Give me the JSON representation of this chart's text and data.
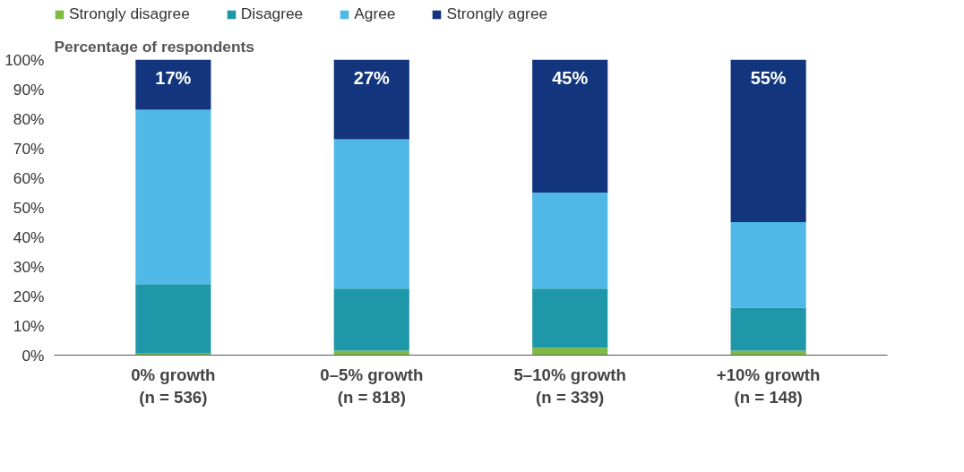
{
  "chart_data": {
    "type": "bar",
    "stacked": true,
    "ylabel": "Percentage of respondents",
    "categories": [
      "0% growth\n(n = 536)",
      "0–5% growth\n(n = 818)",
      "5–10% growth\n(n = 339)",
      "+10% growth\n(n = 148)"
    ],
    "series": [
      {
        "name": "Strongly disagree",
        "color": "#7fba42",
        "values": [
          0.5,
          1.5,
          2.5,
          1.5
        ]
      },
      {
        "name": "Disagree",
        "color": "#1e98a8",
        "values": [
          23.5,
          21,
          20,
          14.5
        ]
      },
      {
        "name": "Agree",
        "color": "#4fb8e7",
        "values": [
          59,
          50.5,
          32.5,
          29
        ]
      },
      {
        "name": "Strongly agree",
        "color": "#12357e",
        "values": [
          17,
          27,
          45,
          55
        ],
        "value_labels": [
          "17%",
          "27%",
          "45%",
          "55%"
        ]
      }
    ],
    "ylim": [
      0,
      100
    ],
    "yticks": [
      {
        "value": 0,
        "label": "0%"
      },
      {
        "value": 10,
        "label": "10%"
      },
      {
        "value": 20,
        "label": "20%"
      },
      {
        "value": 30,
        "label": "30%"
      },
      {
        "value": 40,
        "label": "40%"
      },
      {
        "value": 50,
        "label": "50%"
      },
      {
        "value": 60,
        "label": "60%"
      },
      {
        "value": 70,
        "label": "70%"
      },
      {
        "value": 80,
        "label": "80%"
      },
      {
        "value": 90,
        "label": "90%"
      },
      {
        "value": 100,
        "label": "100%"
      }
    ],
    "grid": false,
    "legend": "top left"
  }
}
